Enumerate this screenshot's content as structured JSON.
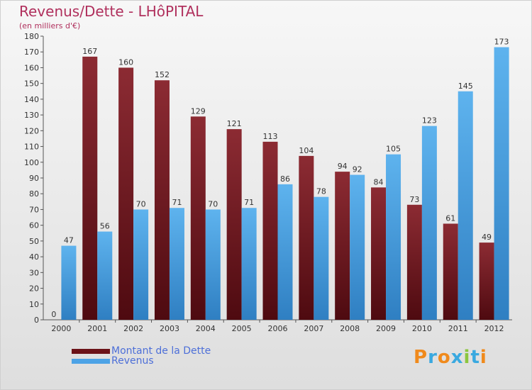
{
  "chart_data": {
    "type": "bar",
    "title": "Revenus/Dette - LHôPITAL",
    "subtitle": "(en milliers d'€)",
    "categories": [
      "2000",
      "2001",
      "2002",
      "2003",
      "2004",
      "2005",
      "2006",
      "2007",
      "2008",
      "2009",
      "2010",
      "2011",
      "2012"
    ],
    "series": [
      {
        "name": "Montant de la Dette",
        "color": "#7a1a20",
        "values": [
          0,
          167,
          160,
          152,
          129,
          121,
          113,
          104,
          94,
          84,
          73,
          61,
          49
        ]
      },
      {
        "name": "Revenus",
        "color": "#4da3e6",
        "values": [
          47,
          56,
          70,
          71,
          70,
          71,
          86,
          78,
          92,
          105,
          123,
          145,
          173
        ]
      }
    ],
    "ylim": [
      0,
      180
    ],
    "ytick_step": 10,
    "grid": false,
    "legend": "bottom-left"
  },
  "brand": {
    "letters": [
      {
        "ch": "P",
        "color": "#f08a1c"
      },
      {
        "ch": "r",
        "color": "#3aa9e0"
      },
      {
        "ch": "o",
        "color": "#f08a1c"
      },
      {
        "ch": "x",
        "color": "#3aa9e0"
      },
      {
        "ch": "i",
        "color": "#8cc63f"
      },
      {
        "ch": "t",
        "color": "#3aa9e0"
      },
      {
        "ch": "i",
        "color": "#f08a1c"
      }
    ]
  }
}
